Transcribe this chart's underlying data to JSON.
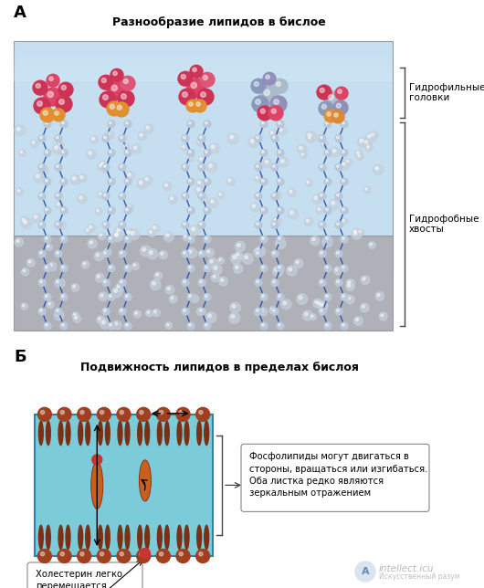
{
  "title_a": "Разнообразие липидов в бислое",
  "title_b": "Подвижность липидов в пределах бислоя",
  "label_a": "А",
  "label_b": "Б",
  "label_hydrophilic": "Гидрофильные\nголовки",
  "label_hydrophobic": "Гидрофобные\nхвосты",
  "label_phospholipid": "Фосфолипиды могут двигаться в\nстороны, вращаться или изгибаться.\nОба листка редко являются\nзеркальным отражением",
  "label_cholesterol": "Холестерин легко\nперемещается",
  "bg_color": "#ffffff",
  "water_color": "#c5dff0",
  "water_top_color": "#d8edf8",
  "bilayer_bg_bottom": "#b0b0b8",
  "panel_b_bilayer_color": "#7bccd8",
  "head_red": "#cc3355",
  "head_pink": "#dd5577",
  "head_blue_dark": "#4455aa",
  "head_blue_light": "#8899cc",
  "head_grey": "#aabbcc",
  "head_orange": "#dd8833",
  "tail_grey": "#c8d4de",
  "tail_dark": "#4466aa",
  "lipid_tail_b": "#8b4513",
  "lipid_head_b": "#a04020",
  "cholesterol_color": "#cc3333",
  "arrow_color": "#222222",
  "bracket_color": "#444444",
  "watermark_color": "#c8c8c8"
}
